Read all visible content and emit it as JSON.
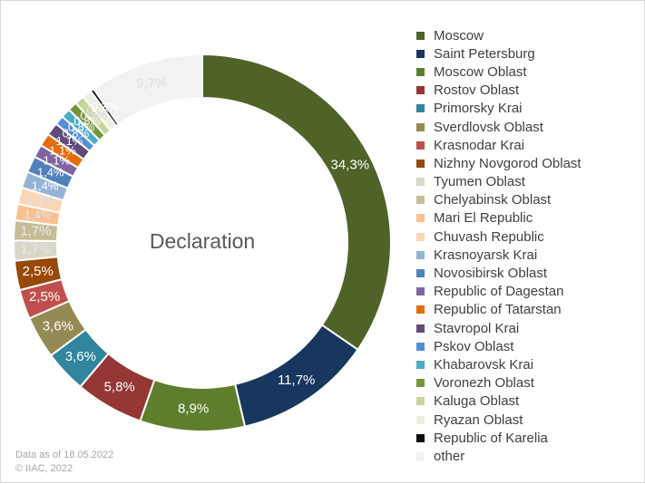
{
  "chart_data": {
    "type": "pie",
    "variant": "donut",
    "center_label": "Declaration",
    "legend_position": "right",
    "categories": [
      "Moscow",
      "Saint Petersburg",
      "Moscow Oblast",
      "Rostov Oblast",
      "Primorsky Krai",
      "Sverdlovsk Oblast",
      "Krasnodar Krai",
      "Nizhny Novgorod Oblast",
      "Tyumen Oblast",
      "Chelyabinsk Oblast",
      "Mari El Republic",
      "Chuvash Republic",
      "Krasnoyarsk Krai",
      "Novosibirsk Oblast",
      "Republic of Dagestan",
      "Republic of Tatarstan",
      "Stavropol Krai",
      "Pskov Oblast",
      "Khabarovsk Krai",
      "Voronezh Oblast",
      "Kaluga Oblast",
      "Ryazan Oblast",
      "Republic of Karelia",
      "other"
    ],
    "values": [
      34.3,
      11.7,
      8.9,
      5.8,
      3.6,
      3.6,
      2.5,
      2.5,
      1.7,
      1.7,
      1.4,
      1.4,
      1.4,
      1.4,
      1.1,
      1.1,
      1.1,
      0.8,
      0.8,
      0.8,
      0.8,
      0.8,
      0.3,
      9.7
    ],
    "labels": [
      "34,3%",
      "11,7%",
      "8,9%",
      "5,8%",
      "3,6%",
      "3,6%",
      "2,5%",
      "2,5%",
      "1,7%",
      "1,7%",
      "1,4%",
      "1,4%",
      "1,4%",
      "1,4%",
      "1,1%",
      "1,1%",
      "1,1%",
      "0,8%",
      "0,8%",
      "0,8%",
      "0,8%",
      "0,8%",
      "0,3%",
      "9,7%"
    ],
    "colors": [
      "#4f6228",
      "#17375e",
      "#5e7e2e",
      "#953735",
      "#31859c",
      "#948a54",
      "#c0504d",
      "#984807",
      "#d9d7c6",
      "#c4bd97",
      "#fac090",
      "#fcd5b5",
      "#95b3d7",
      "#4f81bd",
      "#8064a2",
      "#e46c0a",
      "#604a7b",
      "#558ed5",
      "#4bacc6",
      "#77933c",
      "#c3d69b",
      "#ebf1de",
      "#0d0d0d",
      "#f2f2f2"
    ]
  },
  "footnote": {
    "line1": "Data as of 18.05.2022",
    "line2": "© IIAC, 2022"
  }
}
